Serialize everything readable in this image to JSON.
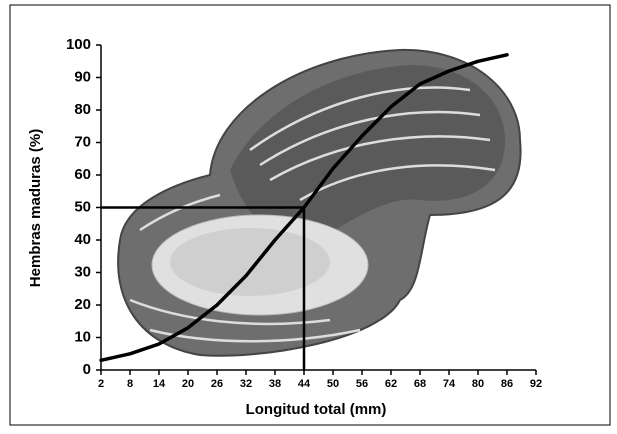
{
  "chart_data": {
    "type": "line",
    "x": [
      2,
      8,
      14,
      20,
      26,
      32,
      38,
      44,
      50,
      56,
      62,
      68,
      74,
      80,
      86
    ],
    "series": [
      {
        "name": "Hembras maduras",
        "color": "#000000",
        "values": [
          3,
          5,
          8,
          13,
          20,
          29,
          40,
          50,
          62,
          72,
          81,
          88,
          92,
          95,
          97
        ]
      }
    ],
    "xlabel": "Longitud total (mm)",
    "ylabel": "Hembras maduras (%)",
    "xlim": [
      2,
      92
    ],
    "xticks": [
      2,
      8,
      14,
      20,
      26,
      32,
      38,
      44,
      50,
      56,
      62,
      68,
      74,
      80,
      86,
      92
    ],
    "ylim": [
      0,
      100
    ],
    "yticks": [
      0,
      10,
      20,
      30,
      40,
      50,
      60,
      70,
      80,
      90,
      100
    ],
    "reference": {
      "x": 44,
      "y": 50
    },
    "grid": false
  }
}
